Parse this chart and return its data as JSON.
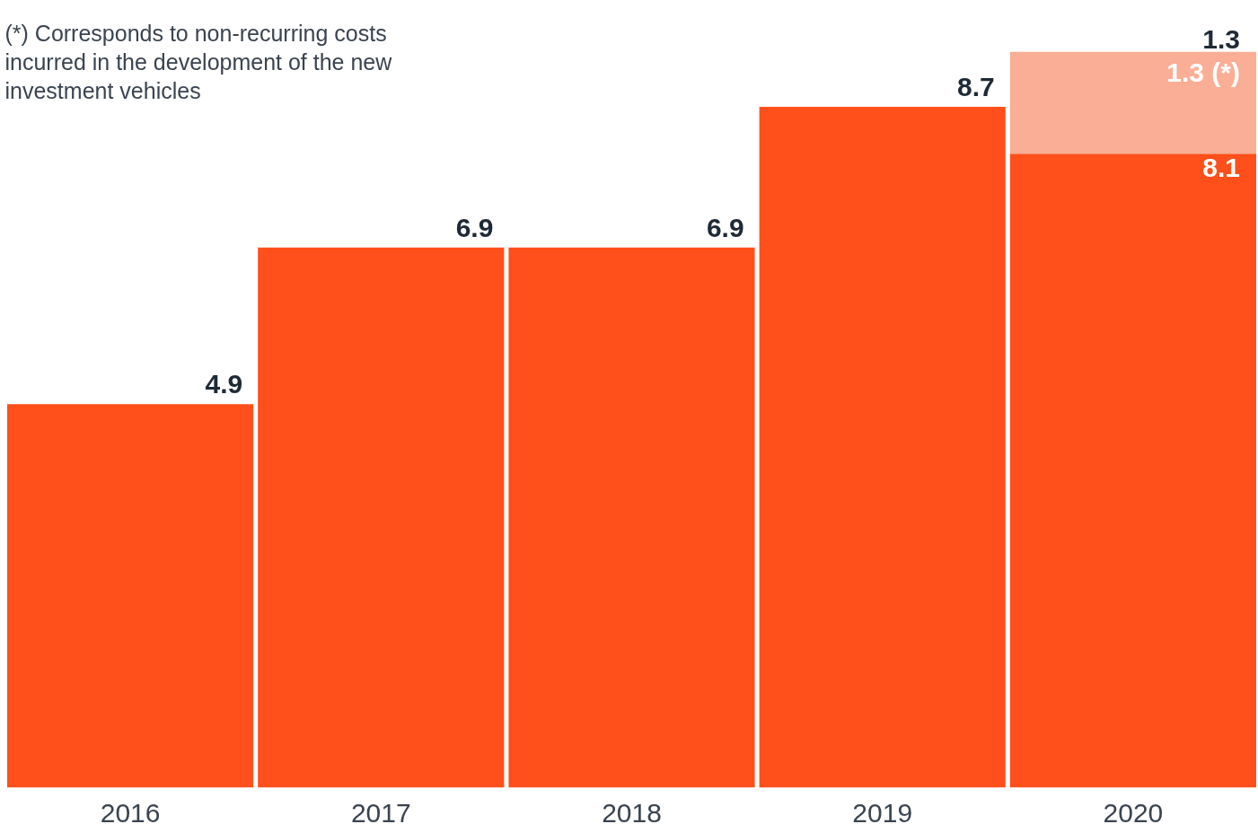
{
  "chart_data": {
    "type": "bar",
    "stacked": true,
    "categories": [
      "2016",
      "2017",
      "2018",
      "2019",
      "2020"
    ],
    "series": [
      {
        "color": "#ff4f1a",
        "values": [
          4.9,
          6.9,
          6.9,
          8.7,
          8.1
        ],
        "value_labels": [
          "4.9",
          "6.9",
          "6.9",
          "8.7",
          "8.1"
        ]
      },
      {
        "color": "#f9ae95",
        "values": [
          null,
          null,
          null,
          null,
          1.3
        ],
        "value_labels": [
          null,
          null,
          null,
          null,
          "1.3 (*)"
        ]
      }
    ],
    "tick_labels": "x",
    "grid": false,
    "annotations": [
      "1.3",
      "(*) Corresponds to non-recurring costs\nincurred in the development of the new\ninvestment vehicles"
    ]
  }
}
